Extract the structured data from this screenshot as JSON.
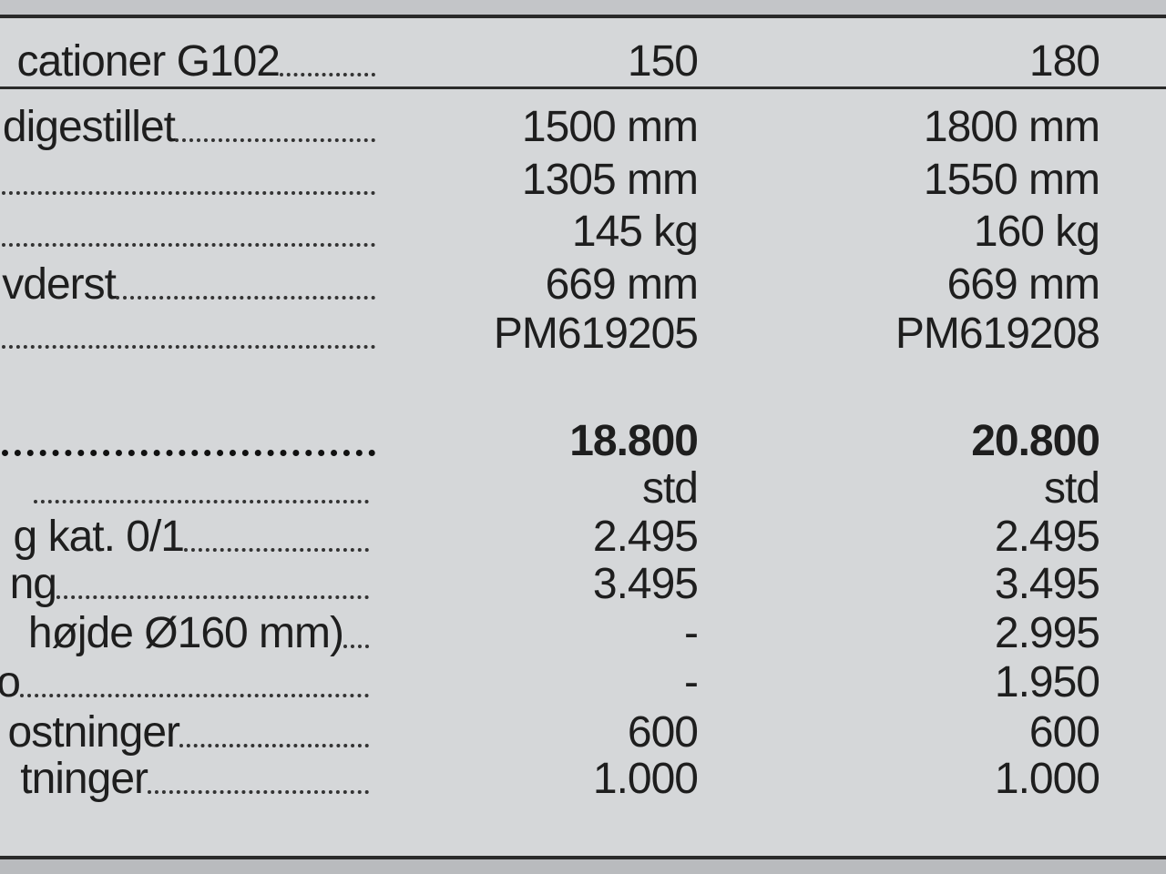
{
  "header": {
    "label": "cationer G102",
    "col1": "150",
    "col2": "180"
  },
  "rows": [
    {
      "label": "digestillet",
      "v1": "1500 mm",
      "v2": "1800 mm"
    },
    {
      "label": "",
      "v1": "1305 mm",
      "v2": "1550 mm"
    },
    {
      "label": "",
      "v1": "145 kg",
      "v2": "160 kg"
    },
    {
      "label": "vderst",
      "v1": "669 mm",
      "v2": "669 mm"
    },
    {
      "label": "",
      "v1": "PM619205",
      "v2": "PM619208"
    },
    {
      "label": "",
      "v1": "18.800",
      "v2": "20.800",
      "bold": true
    },
    {
      "label": "",
      "v1": "std",
      "v2": "std"
    },
    {
      "label": "g kat. 0/1",
      "v1": "2.495",
      "v2": "2.495"
    },
    {
      "label": "ng",
      "v1": "3.495",
      "v2": "3.495"
    },
    {
      "label": "højde Ø160 mm)",
      "v1": "-",
      "v2": "2.995"
    },
    {
      "label": "o",
      "v1": "-",
      "v2": "1.950"
    },
    {
      "label": "ostninger",
      "v1": "600",
      "v2": "600"
    },
    {
      "label": "tninger",
      "v1": "1.000",
      "v2": "1.000"
    }
  ]
}
